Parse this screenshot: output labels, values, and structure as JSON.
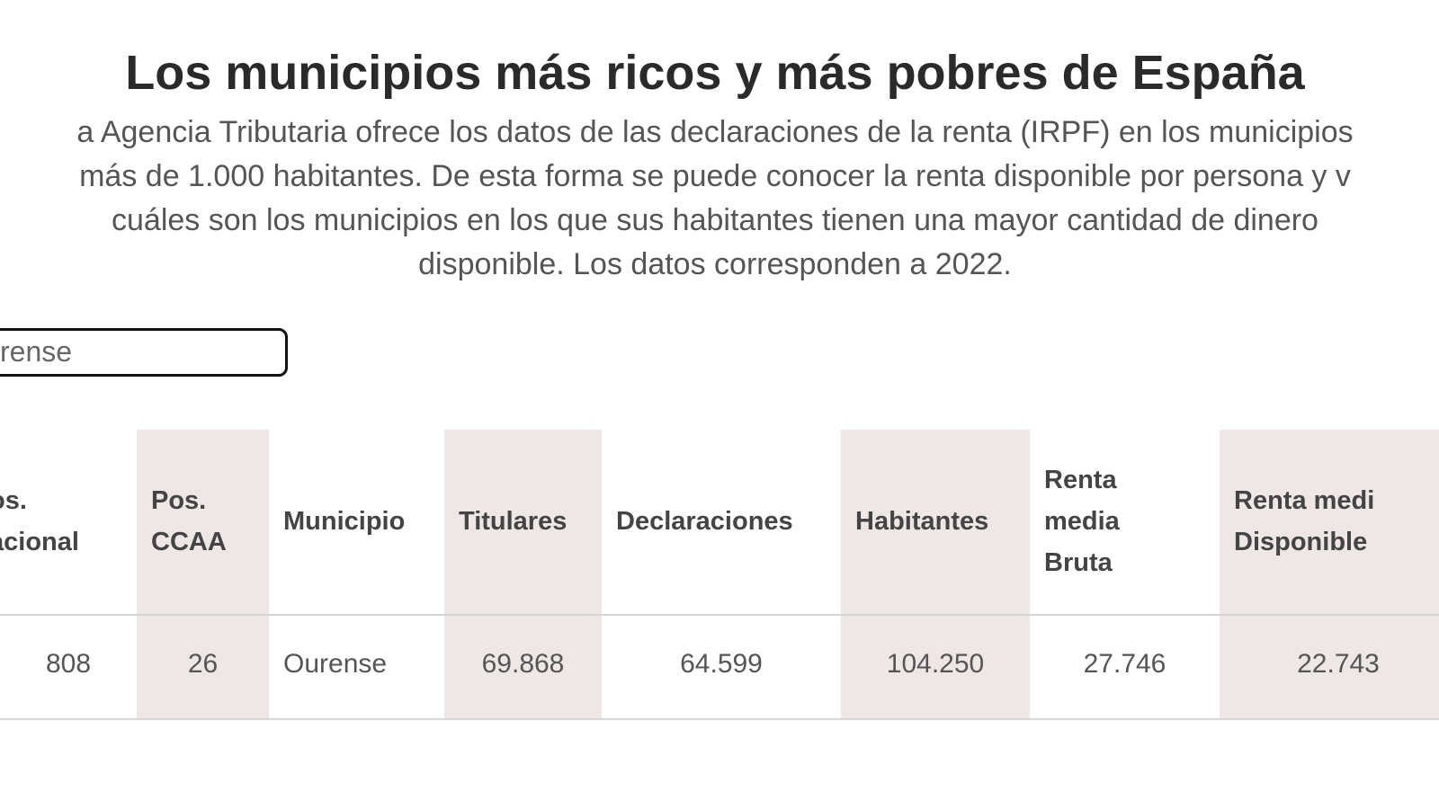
{
  "header": {
    "title": "Los municipios más ricos y más pobres de España",
    "description": [
      "a Agencia Tributaria ofrece los datos de las declaraciones de la renta (IRPF) en los municipios",
      "más de 1.000 habitantes. De esta forma se puede conocer la renta disponible por persona y v",
      "cuáles son los municipios en los que sus habitantes tienen una mayor cantidad de dinero",
      "disponible. Los datos corresponden a 2022."
    ]
  },
  "search": {
    "value": "rense"
  },
  "table": {
    "columns": [
      [
        "os.",
        "acional"
      ],
      [
        "Pos.",
        "CCAA"
      ],
      [
        "Municipio"
      ],
      [
        "Titulares"
      ],
      [
        "Declaraciones"
      ],
      [
        "Habitantes"
      ],
      [
        "Renta",
        "media",
        "Bruta"
      ],
      [
        "Renta medi",
        "Disponible"
      ]
    ],
    "rows": [
      [
        "808",
        "26",
        "Ourense",
        "69.868",
        "64.599",
        "104.250",
        "27.746",
        "22.743"
      ]
    ]
  }
}
